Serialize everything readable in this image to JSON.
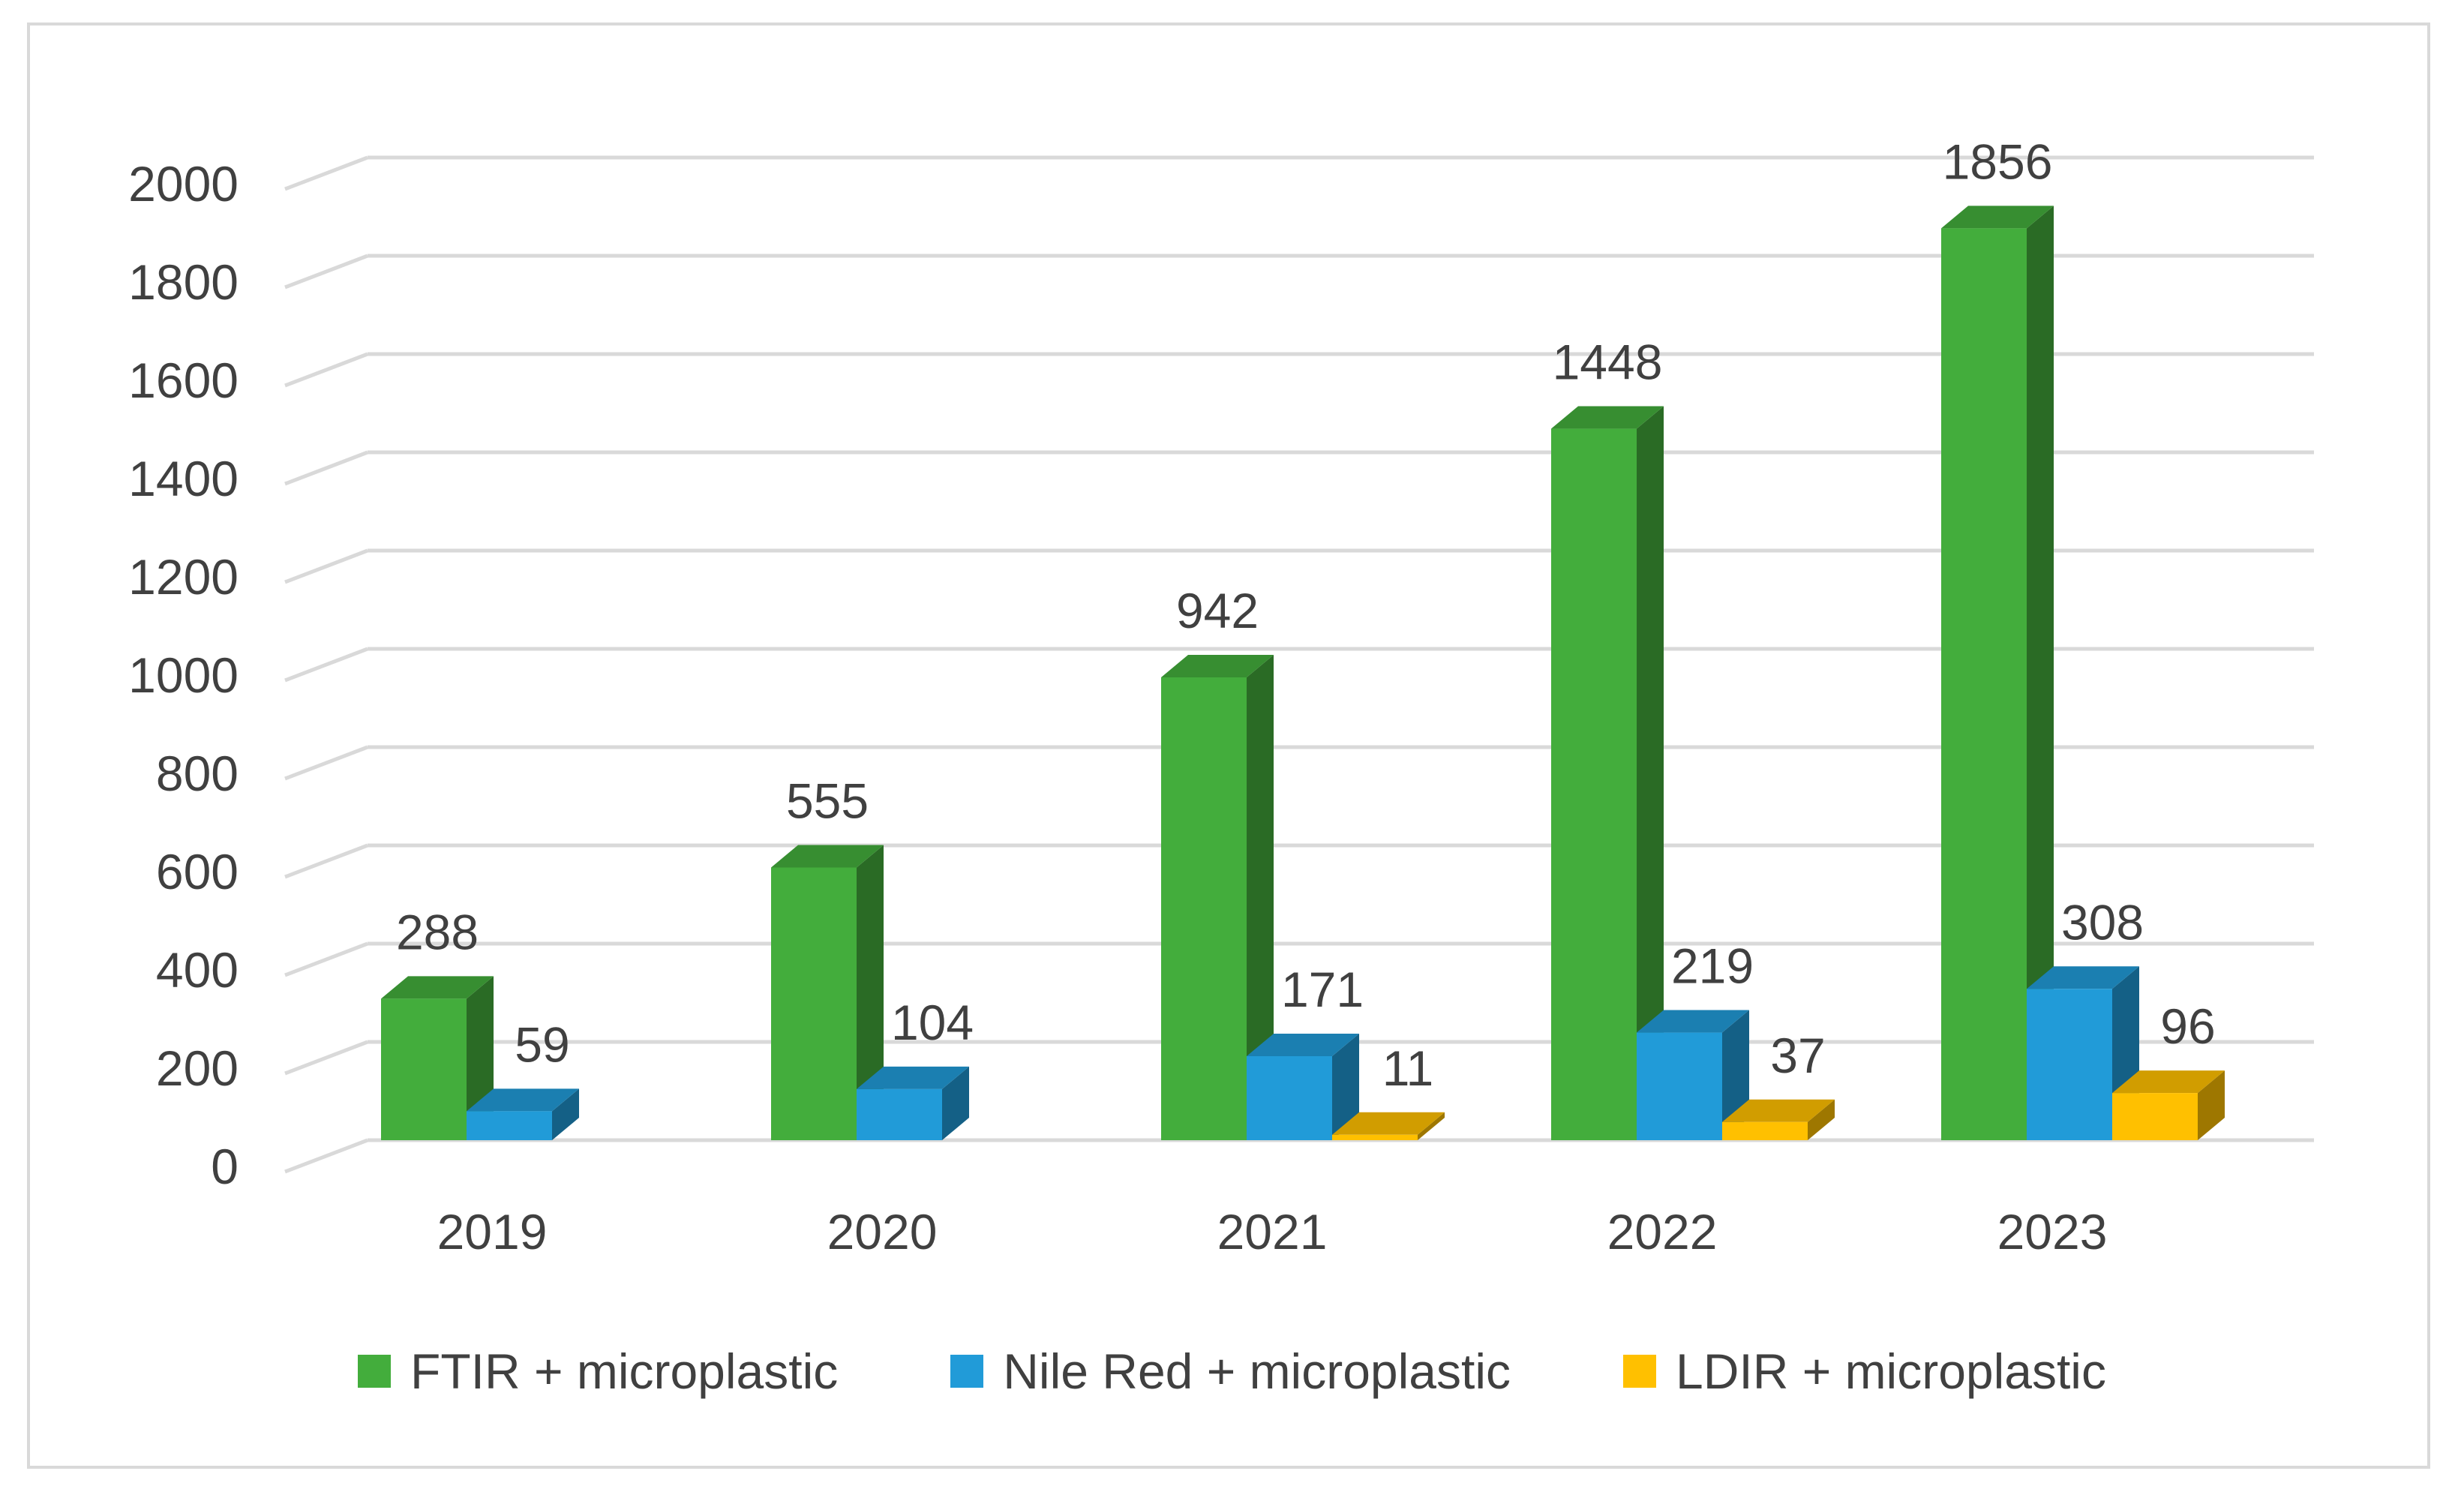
{
  "chart_data": {
    "type": "bar",
    "title": "",
    "xlabel": "",
    "ylabel": "",
    "ylim": [
      0,
      2000
    ],
    "yticks": [
      0,
      200,
      400,
      600,
      800,
      1000,
      1200,
      1400,
      1600,
      1800,
      2000
    ],
    "ytick_labels": [
      "0",
      "200",
      "400",
      "600",
      "800",
      "1000",
      "1200",
      "1400",
      "1600",
      "1800",
      "2000"
    ],
    "categories": [
      "2019",
      "2020",
      "2021",
      "2022",
      "2023"
    ],
    "grid": true,
    "legend_position": "bottom",
    "series": [
      {
        "name": "FTIR + microplastic",
        "color": "#43ad3c",
        "values": [
          288,
          555,
          942,
          1448,
          1856
        ],
        "labels": [
          "288",
          "555",
          "942",
          "1448",
          "1856"
        ]
      },
      {
        "name": "Nile Red + microplastic",
        "color": "#219bd8",
        "values": [
          59,
          104,
          171,
          219,
          308
        ],
        "labels": [
          "59",
          "104",
          "171",
          "219",
          "308"
        ]
      },
      {
        "name": "LDIR + microplastic",
        "color": "#ffc000",
        "values": [
          null,
          null,
          11,
          37,
          96
        ],
        "labels": [
          "",
          "",
          "11",
          "37",
          "96"
        ]
      }
    ]
  }
}
